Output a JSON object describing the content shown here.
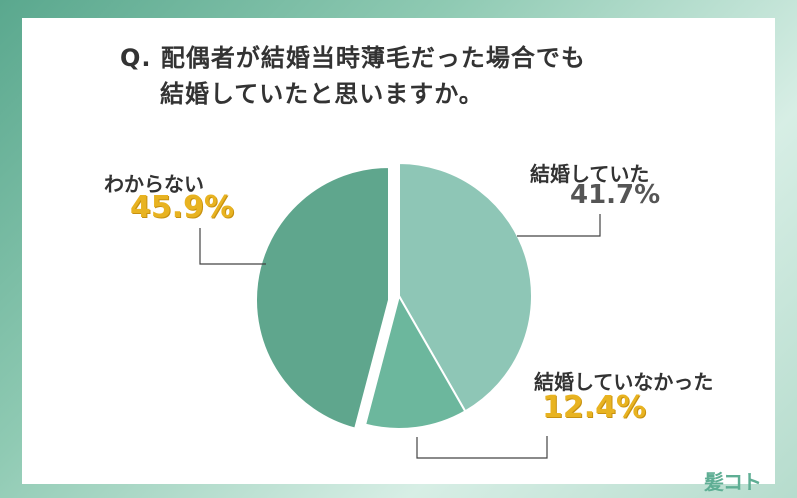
{
  "title_line1": "Q. 配偶者が結婚当時薄毛だった場合でも",
  "title_line2": "結婚していたと思いますか。",
  "logo": "髪コト",
  "colors": {
    "background": "#5aa88e",
    "accent_label": "#e8b321",
    "slice_1": "#8ec6b6",
    "slice_2": "#6cb79d",
    "slice_3": "#5fa68d"
  },
  "chart_data": {
    "type": "pie",
    "title": "Q. 配偶者が結婚当時薄毛だった場合でも結婚していたと思いますか。",
    "slices": [
      {
        "label": "結婚していた",
        "value": 41.7,
        "value_label": "41.7%",
        "color": "#8ec6b6"
      },
      {
        "label": "結婚していなかった",
        "value": 12.4,
        "value_label": "12.4%",
        "color": "#6cb79d"
      },
      {
        "label": "わからない",
        "value": 45.9,
        "value_label": "45.9%",
        "color": "#5fa68d"
      }
    ],
    "start_angle": "top",
    "direction": "clockwise"
  }
}
